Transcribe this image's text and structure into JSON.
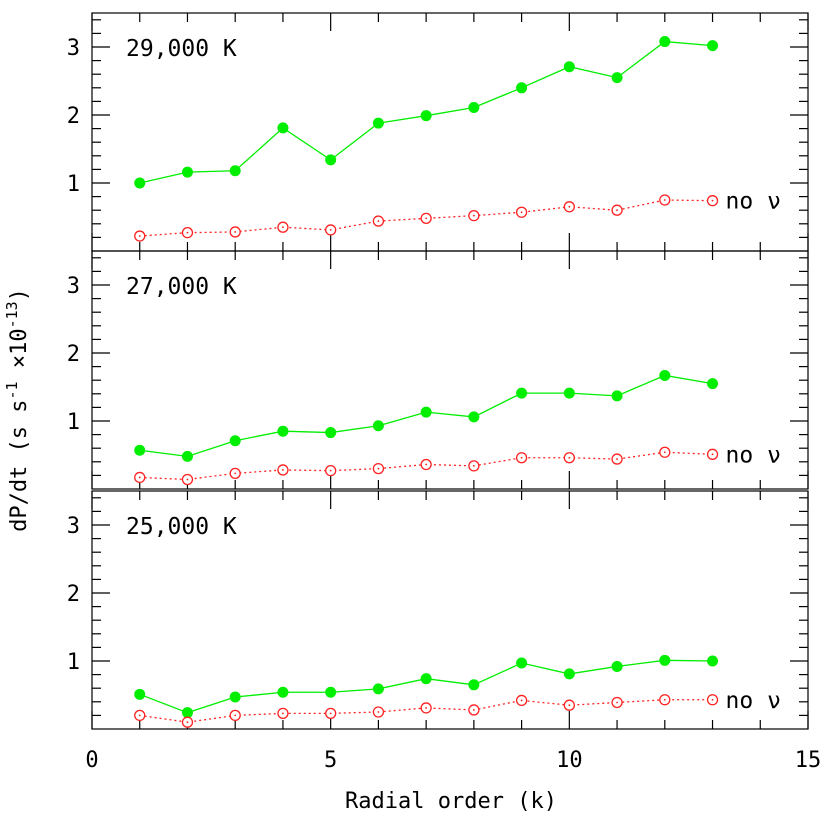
{
  "chart_data": {
    "type": "line",
    "xlabel": "Radial order (k)",
    "ylabel_main": "dP/dt (s s",
    "ylabel_exp1": "-1",
    "ylabel_mid": " ×10",
    "ylabel_exp2": "-13",
    "ylabel_close": ")",
    "xlim": [
      0,
      15
    ],
    "ylim": [
      0,
      3.5
    ],
    "x_ticks": [
      0,
      5,
      10,
      15
    ],
    "y_ticks": [
      1,
      2,
      3
    ],
    "series_colors": {
      "with_neutrinos": "#00ee00",
      "no_neutrinos": "#ff2222"
    },
    "panels": [
      {
        "title": "29,000 K",
        "annotation": "no ν",
        "x": [
          1,
          2,
          3,
          4,
          5,
          6,
          7,
          8,
          9,
          10,
          11,
          12,
          13
        ],
        "series": [
          {
            "style": "solid-filled",
            "values": [
              1.0,
              1.16,
              1.18,
              1.81,
              1.34,
              1.88,
              1.99,
              2.11,
              2.4,
              2.71,
              2.55,
              3.08,
              3.02
            ]
          },
          {
            "style": "dotted-open",
            "values": [
              0.22,
              0.27,
              0.28,
              0.35,
              0.31,
              0.44,
              0.48,
              0.52,
              0.57,
              0.65,
              0.6,
              0.75,
              0.74
            ]
          }
        ]
      },
      {
        "title": "27,000 K",
        "annotation": "no ν",
        "x": [
          1,
          2,
          3,
          4,
          5,
          6,
          7,
          8,
          9,
          10,
          11,
          12,
          13
        ],
        "series": [
          {
            "style": "solid-filled",
            "values": [
              0.57,
              0.48,
              0.71,
              0.85,
              0.83,
              0.93,
              1.13,
              1.06,
              1.41,
              1.41,
              1.37,
              1.67,
              1.55
            ]
          },
          {
            "style": "dotted-open",
            "values": [
              0.17,
              0.14,
              0.23,
              0.28,
              0.27,
              0.3,
              0.36,
              0.34,
              0.46,
              0.46,
              0.44,
              0.54,
              0.51
            ]
          }
        ]
      },
      {
        "title": "25,000 K",
        "annotation": "no ν",
        "x": [
          1,
          2,
          3,
          4,
          5,
          6,
          7,
          8,
          9,
          10,
          11,
          12,
          13
        ],
        "series": [
          {
            "style": "solid-filled",
            "values": [
              0.51,
              0.24,
              0.47,
              0.54,
              0.54,
              0.59,
              0.74,
              0.65,
              0.97,
              0.81,
              0.92,
              1.01,
              1.0
            ]
          },
          {
            "style": "dotted-open",
            "values": [
              0.2,
              0.1,
              0.2,
              0.23,
              0.23,
              0.25,
              0.31,
              0.28,
              0.42,
              0.35,
              0.39,
              0.43,
              0.43
            ]
          }
        ]
      }
    ]
  }
}
